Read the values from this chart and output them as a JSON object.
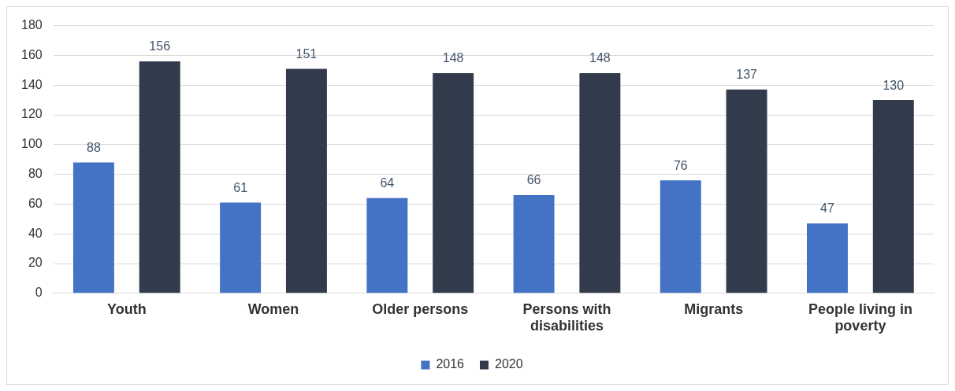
{
  "chart_data": {
    "type": "bar",
    "categories": [
      "Youth",
      "Women",
      "Older persons",
      "Persons with disabilities",
      "Migrants",
      "People living in poverty"
    ],
    "series": [
      {
        "name": "2016",
        "color": "#4472c4",
        "values": [
          88,
          61,
          64,
          66,
          76,
          47
        ]
      },
      {
        "name": "2020",
        "color": "#323b4c",
        "values": [
          156,
          151,
          148,
          148,
          137,
          130
        ]
      }
    ],
    "ylim": [
      0,
      180
    ],
    "yticks": [
      0,
      20,
      40,
      60,
      80,
      100,
      120,
      140,
      160,
      180
    ],
    "grid": "y",
    "legend": "bottom",
    "data_labels": true
  }
}
